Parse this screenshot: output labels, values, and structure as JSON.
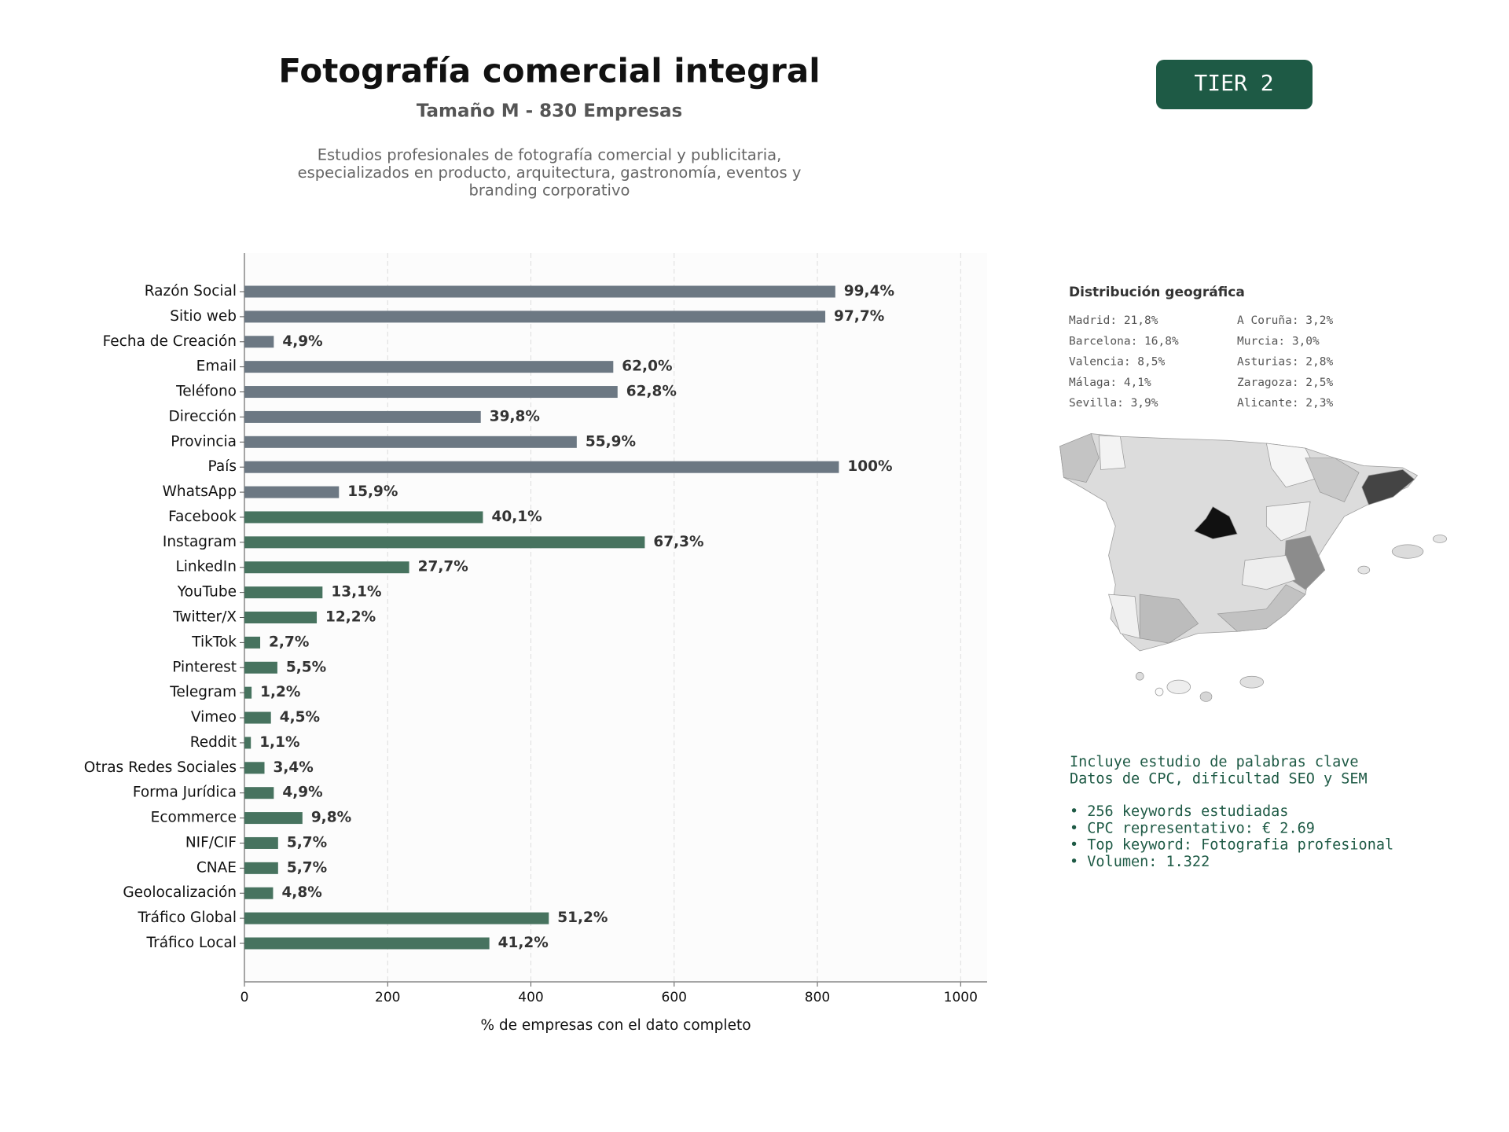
{
  "chart_data": {
    "type": "bar",
    "orientation": "horizontal",
    "title": "Fotografía comercial integral",
    "subtitle": "Tamaño M - 830 Empresas",
    "description": [
      "Estudios profesionales de fotografía comercial y publicitaria,",
      "especializados en producto, arquitectura, gastronomía, eventos y",
      "branding corporativo"
    ],
    "xlabel": "% de empresas con el dato completo",
    "categories": [
      "Razón Social",
      "Sitio web",
      "Fecha de Creación",
      "Email",
      "Teléfono",
      "Dirección",
      "Provincia",
      "País",
      "WhatsApp",
      "Facebook",
      "Instagram",
      "LinkedIn",
      "YouTube",
      "Twitter/X",
      "TikTok",
      "Pinterest",
      "Telegram",
      "Vimeo",
      "Reddit",
      "Otras Redes Sociales",
      "Forma Jurídica",
      "Ecommerce",
      "NIF/CIF",
      "CNAE",
      "Geolocalización",
      "Tráfico Global",
      "Tráfico Local"
    ],
    "values": [
      825,
      811,
      41,
      515,
      521,
      330,
      464,
      830,
      132,
      333,
      559,
      230,
      109,
      101,
      22,
      46,
      10,
      37,
      9,
      28,
      41,
      81,
      47,
      47,
      40,
      425,
      342
    ],
    "value_labels": [
      "99,4%",
      "97,7%",
      "4,9%",
      "62,0%",
      "62,8%",
      "39,8%",
      "55,9%",
      "100%",
      "15,9%",
      "40,1%",
      "67,3%",
      "27,7%",
      "13,1%",
      "12,2%",
      "2,7%",
      "5,5%",
      "1,2%",
      "4,5%",
      "1,1%",
      "3,4%",
      "4,9%",
      "9,8%",
      "5,7%",
      "5,7%",
      "4,8%",
      "51,2%",
      "41,2%"
    ],
    "colors": [
      "#6c7883",
      "#6c7883",
      "#6c7883",
      "#6c7883",
      "#6c7883",
      "#6c7883",
      "#6c7883",
      "#6c7883",
      "#6c7883",
      "#47735f",
      "#47735f",
      "#47735f",
      "#47735f",
      "#47735f",
      "#47735f",
      "#47735f",
      "#47735f",
      "#47735f",
      "#47735f",
      "#47735f",
      "#47735f",
      "#47735f",
      "#47735f",
      "#47735f",
      "#47735f",
      "#47735f",
      "#47735f"
    ],
    "xlim": [
      0,
      1037
    ],
    "xticks": [
      0,
      200,
      400,
      600,
      800,
      1000
    ],
    "grid": true
  },
  "badge": "TIER 2",
  "geo": {
    "title": "Distribución geográfica",
    "entries": [
      [
        "Madrid: 21,8%",
        "A Coruña: 3,2%"
      ],
      [
        "Barcelona: 16,8%",
        "Murcia: 3,0%"
      ],
      [
        "Valencia: 8,5%",
        "Asturias: 2,8%"
      ],
      [
        "Málaga: 4,1%",
        "Zaragoza: 2,5%"
      ],
      [
        "Sevilla: 3,9%",
        "Alicante: 2,3%"
      ]
    ]
  },
  "keywords": {
    "lines": [
      "Incluye estudio de palabras clave",
      "Datos de CPC, dificultad SEO y SEM"
    ],
    "bullets": [
      "• 256 keywords estudiadas",
      "• CPC representativo: € 2.69",
      "• Top keyword: Fotografia profesional",
      "• Volumen: 1.322"
    ]
  }
}
